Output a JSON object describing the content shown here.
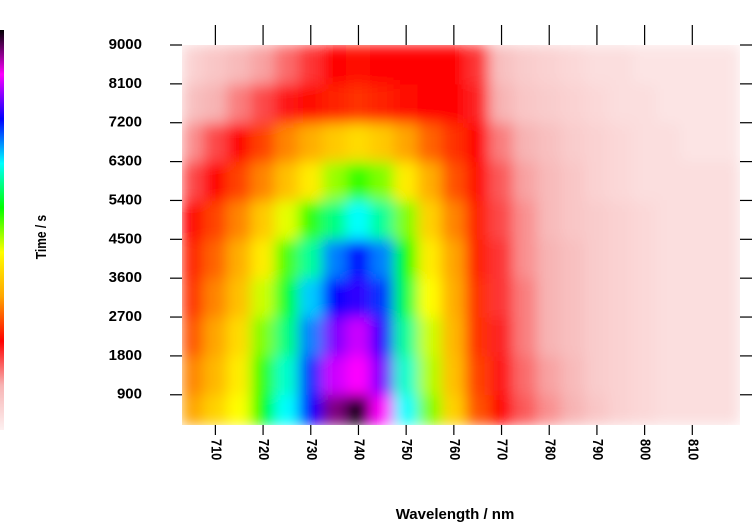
{
  "chart_data": {
    "type": "heatmap",
    "xlabel": "Wavelength / nm",
    "ylabel": "Time / s",
    "x": [
      705,
      710,
      715,
      720,
      725,
      730,
      735,
      740,
      745,
      750,
      755,
      760,
      765,
      770,
      775,
      780,
      785,
      790,
      795,
      800,
      805,
      810,
      815
    ],
    "y": [
      450,
      1350,
      2250,
      3150,
      4050,
      4950,
      5850,
      6750,
      7650,
      8550
    ],
    "z": [
      [
        3,
        3.5,
        4,
        5,
        6,
        7,
        8.5,
        9,
        8,
        6,
        4.5,
        3.5,
        2.5,
        2,
        1.5,
        1.2,
        1,
        0.7,
        0.5,
        0.4,
        0.3,
        0.3,
        0.3
      ],
      [
        2.8,
        3.2,
        3.8,
        4.8,
        5.8,
        6.8,
        7.8,
        8,
        7.5,
        5.8,
        4.3,
        3.3,
        2.4,
        1.9,
        1.4,
        1.1,
        0.9,
        0.6,
        0.5,
        0.4,
        0.3,
        0.3,
        0.3
      ],
      [
        2.5,
        3,
        3.6,
        4.5,
        5.5,
        6.5,
        7.5,
        7.8,
        7.2,
        5.6,
        4.2,
        3.2,
        2.3,
        1.8,
        1.3,
        1,
        0.8,
        0.6,
        0.5,
        0.4,
        0.3,
        0.3,
        0.3
      ],
      [
        2.3,
        2.8,
        3.3,
        4.2,
        5.2,
        6.2,
        7,
        7.2,
        6.8,
        5.3,
        4,
        3.1,
        2.3,
        1.7,
        1.3,
        1,
        0.8,
        0.6,
        0.5,
        0.4,
        0.3,
        0.3,
        0.3
      ],
      [
        2.2,
        2.6,
        3.1,
        3.8,
        4.7,
        5.6,
        6.5,
        7,
        6.5,
        5,
        3.8,
        3,
        2.2,
        1.7,
        1.2,
        1,
        0.8,
        0.6,
        0.5,
        0.4,
        0.3,
        0.3,
        0.3
      ],
      [
        2,
        2.4,
        2.8,
        3.4,
        4.1,
        4.8,
        5.5,
        6,
        5.6,
        4.5,
        3.5,
        2.8,
        2.2,
        1.6,
        1.2,
        0.9,
        0.7,
        0.6,
        0.5,
        0.4,
        0.3,
        0.3,
        0.3
      ],
      [
        1.6,
        2,
        2.4,
        2.8,
        3.3,
        3.8,
        4.4,
        4.8,
        4.5,
        3.8,
        3.1,
        2.5,
        2.1,
        1.5,
        1.1,
        0.9,
        0.7,
        0.5,
        0.4,
        0.3,
        0.3,
        0.3,
        0.3
      ],
      [
        1.2,
        1.6,
        2,
        2.4,
        2.8,
        3.1,
        3.4,
        3.6,
        3.4,
        3,
        2.6,
        2.3,
        2,
        1.3,
        1,
        0.8,
        0.6,
        0.5,
        0.4,
        0.3,
        0.3,
        0.2,
        0.2
      ],
      [
        0.8,
        1,
        1.3,
        1.6,
        1.9,
        2.1,
        2.2,
        2.3,
        2.2,
        2.1,
        2,
        2,
        1.8,
        1,
        0.7,
        0.6,
        0.5,
        0.4,
        0.3,
        0.3,
        0.2,
        0.2,
        0.2
      ],
      [
        0.5,
        0.7,
        0.9,
        1.1,
        1.4,
        1.7,
        2,
        2.1,
        2,
        2,
        2,
        2,
        1.7,
        0.8,
        0.6,
        0.5,
        0.4,
        0.3,
        0.3,
        0.2,
        0.2,
        0.2,
        0.2
      ]
    ],
    "colorscale": [
      "#fdf0f0",
      "#f7b4b4",
      "#ff0000",
      "#ffa500",
      "#ffff00",
      "#00ff00",
      "#00ffff",
      "#0000ff",
      "#ff00ff",
      "#000000"
    ],
    "xlim": [
      703,
      820
    ],
    "ylim": [
      200,
      9000
    ],
    "xticks": [
      710,
      720,
      730,
      740,
      750,
      760,
      770,
      780,
      790,
      800,
      810
    ],
    "yticks": [
      900,
      1800,
      2700,
      3600,
      4500,
      5400,
      6300,
      7200,
      8100,
      9000
    ]
  }
}
